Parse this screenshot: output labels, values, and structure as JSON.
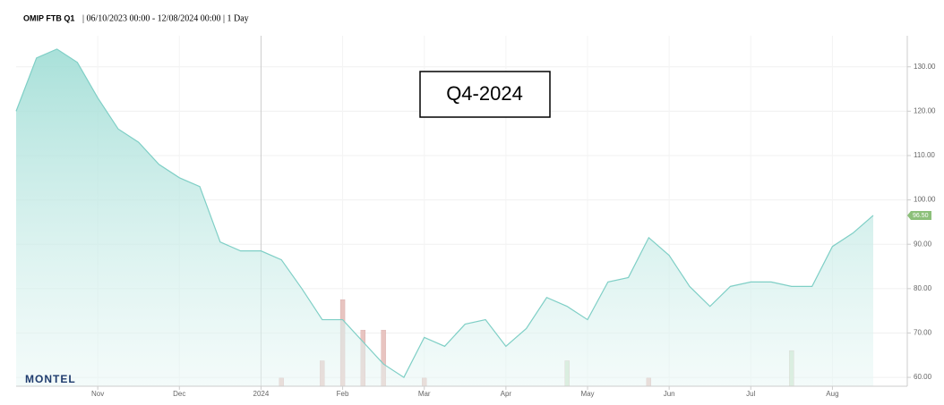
{
  "chart_data": {
    "type": "area",
    "title": "OMIP FTB Q1",
    "subtitle": "| 06/10/2023 00:00 - 12/08/2024 00:00 | 1 Day",
    "annotation": "Q4-2024",
    "logo": "MONTEL",
    "categories": [
      null,
      null,
      null,
      null,
      "Nov",
      null,
      null,
      null,
      "Dec",
      null,
      null,
      null,
      "2024",
      null,
      null,
      null,
      "Feb",
      null,
      null,
      null,
      "Mar",
      null,
      null,
      null,
      "Apr",
      null,
      null,
      null,
      "May",
      null,
      null,
      null,
      "Jun",
      null,
      null,
      null,
      "Jul",
      null,
      null,
      null,
      "Aug",
      null,
      null
    ],
    "series": [
      {
        "color": "#7fcfc6",
        "values": [
          120,
          132,
          134,
          131,
          123,
          116,
          113,
          108,
          105,
          103,
          90.5,
          88.5,
          88.5,
          86.5,
          80,
          73,
          73,
          68,
          63,
          60,
          69,
          67,
          72,
          73,
          67,
          71,
          78,
          76,
          73,
          81.5,
          82.5,
          91.5,
          87.5,
          80.5,
          76,
          80.5,
          81.5,
          81.5,
          80.5,
          80.5,
          89.5,
          92.5,
          96.5
        ],
        "value_labels": [
          null,
          null,
          null,
          null,
          null,
          null,
          null,
          null,
          null,
          null,
          null,
          null,
          null,
          null,
          null,
          null,
          null,
          null,
          null,
          null,
          null,
          null,
          null,
          null,
          null,
          null,
          null,
          null,
          null,
          null,
          null,
          null,
          null,
          null,
          null,
          null,
          null,
          null,
          null,
          null,
          null,
          null,
          "96.50"
        ],
        "label_color": "#8cc07a"
      }
    ],
    "volume": {
      "values": [
        null,
        null,
        null,
        null,
        null,
        null,
        null,
        null,
        null,
        null,
        null,
        null,
        null,
        8,
        null,
        25,
        85,
        55,
        55,
        null,
        8,
        null,
        null,
        null,
        null,
        null,
        null,
        25,
        null,
        null,
        null,
        8,
        null,
        null,
        null,
        null,
        null,
        null,
        35,
        null,
        null,
        null,
        null
      ],
      "colors": [
        null,
        null,
        null,
        null,
        null,
        null,
        null,
        null,
        null,
        null,
        null,
        null,
        null,
        "#e8c4c0",
        null,
        "#e8c4c0",
        "#e8c4c0",
        "#e8c4c0",
        "#e8c4c0",
        null,
        "#e8c4c0",
        null,
        null,
        null,
        null,
        null,
        null,
        "#cfe6cc",
        null,
        null,
        null,
        "#e8c4c0",
        null,
        null,
        null,
        null,
        null,
        null,
        "#cfe6cc",
        null,
        null,
        null,
        null
      ],
      "y2lim": [
        0,
        100
      ]
    },
    "ylim": [
      58,
      137
    ],
    "yticks": [
      {
        "value": 60,
        "label": "60.00"
      },
      {
        "value": 70,
        "label": "70.00"
      },
      {
        "value": 80,
        "label": "80.00"
      },
      {
        "value": 90,
        "label": "90.00"
      },
      {
        "value": 100,
        "label": "100.00"
      },
      {
        "value": 110,
        "label": "110.00"
      },
      {
        "value": 120,
        "label": "120.00"
      },
      {
        "value": 130,
        "label": "130.00"
      }
    ],
    "grid": true
  }
}
